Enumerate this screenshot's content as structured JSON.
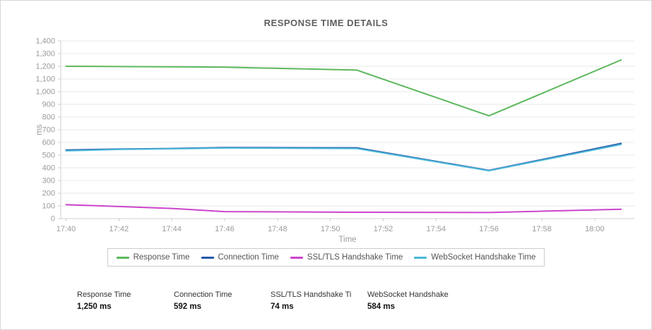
{
  "chart_data": {
    "type": "line",
    "title": "RESPONSE TIME DETAILS",
    "xlabel": "Time",
    "ylabel": "ms",
    "ylim": [
      0,
      1400
    ],
    "ytick_step": 100,
    "ytick_labels": [
      "0",
      "100",
      "200",
      "300",
      "400",
      "500",
      "600",
      "700",
      "800",
      "900",
      "1,000",
      "1,100",
      "1,200",
      "1,300",
      "1,400"
    ],
    "xtick_labels": [
      "17:40",
      "17:42",
      "17:44",
      "17:46",
      "17:48",
      "17:50",
      "17:52",
      "17:54",
      "17:56",
      "17:58",
      "18:00"
    ],
    "xtick_minutes": [
      0,
      2,
      4,
      6,
      8,
      10,
      12,
      14,
      16,
      18,
      20
    ],
    "xlim": [
      -0.2,
      21.5
    ],
    "x_times": [
      "17:40",
      "17:42",
      "17:44",
      "17:46",
      "17:51",
      "17:56",
      "18:01"
    ],
    "x_minutes": [
      0,
      2,
      4,
      6,
      11,
      16,
      21
    ],
    "grid": "horizontal",
    "legend_position": "bottom",
    "series": [
      {
        "name": "Response Time",
        "color": "#5cb85c",
        "values": [
          1200,
          1198,
          1196,
          1193,
          1170,
          810,
          1250
        ]
      },
      {
        "name": "Connection Time",
        "color": "#2357a8",
        "values": [
          540,
          548,
          552,
          560,
          558,
          380,
          592
        ]
      },
      {
        "name": "SSL/TLS Handshake Time",
        "color": "#cc44cc",
        "values": [
          110,
          95,
          80,
          55,
          50,
          48,
          74
        ]
      },
      {
        "name": "WebSocket Handshake Time",
        "color": "#4bb8d8",
        "values": [
          534,
          545,
          550,
          556,
          552,
          377,
          584
        ]
      }
    ]
  },
  "stats": [
    {
      "label": "Response Time",
      "value": "1,250 ms"
    },
    {
      "label": "Connection Time",
      "value": "592 ms"
    },
    {
      "label": "SSL/TLS Handshake Ti",
      "value": "74 ms"
    },
    {
      "label": "WebSocket Handshake",
      "value": "584 ms"
    }
  ]
}
